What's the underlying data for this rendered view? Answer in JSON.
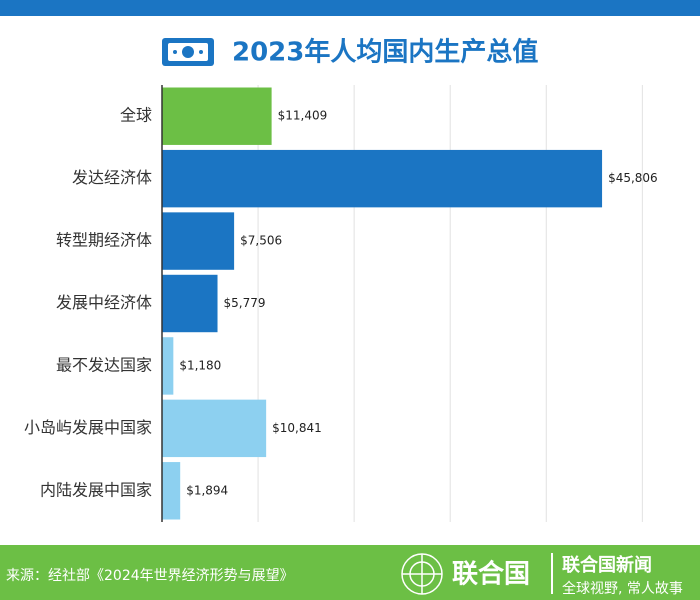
{
  "chart_data": {
    "type": "hbar",
    "title": "2023年人均国内生产总值",
    "categories": [
      "全球",
      "发达经济体",
      "转型期经济体",
      "发展中经济体",
      "最不发达国家",
      "小岛屿发展中国家",
      "内陆发展中国家"
    ],
    "values": [
      11409,
      45806,
      7506,
      5779,
      1180,
      10841,
      1894
    ],
    "value_labels": [
      "$11,409",
      "$45,806",
      "$7,506",
      "$5,779",
      "$1,180",
      "$10,841",
      "$1,894"
    ],
    "colors": [
      "#6cbf45",
      "#1b75c3",
      "#1b75c3",
      "#1b75c3",
      "#8dd0f0",
      "#8dd0f0",
      "#8dd0f0"
    ],
    "xlim": [
      0,
      56000
    ],
    "xticks": [
      10000,
      20000,
      30000,
      40000,
      50000
    ],
    "grid": true
  },
  "footer": {
    "source": "来源：经社部《2024年世界经济形势与展望》",
    "logo": "联合国",
    "brand": "联合国新闻",
    "slogan": "全球视野, 常人故事"
  }
}
